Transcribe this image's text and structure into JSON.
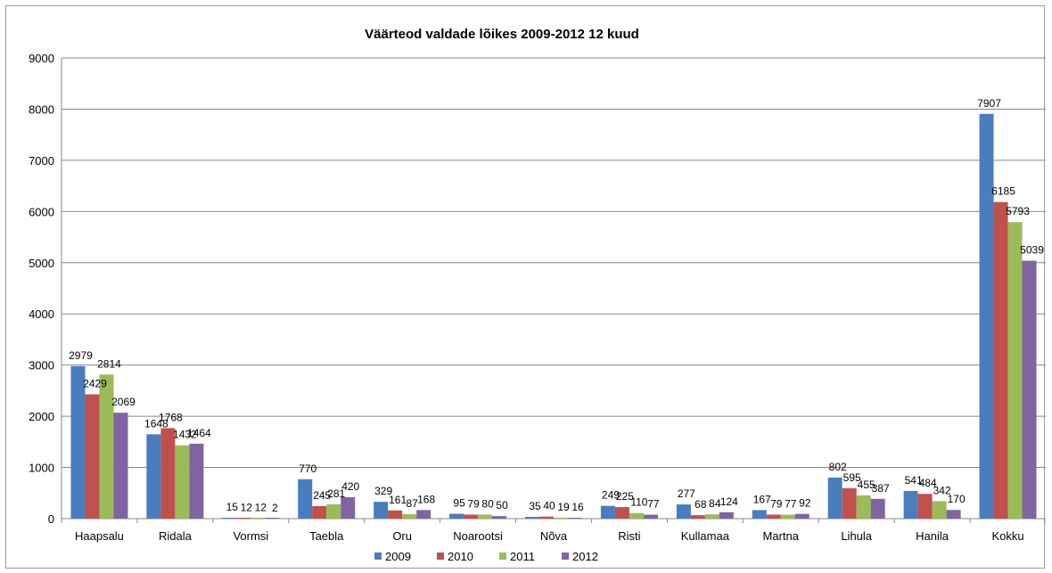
{
  "chart_data": {
    "type": "bar",
    "title": "Väärteod valdade lõikes 2009-2012 12 kuud",
    "xlabel": "",
    "ylabel": "",
    "ylim": [
      0,
      9000
    ],
    "yticks": [
      "0",
      "1000",
      "2000",
      "3000",
      "4000",
      "5000",
      "6000",
      "7000",
      "8000",
      "9000"
    ],
    "grid": true,
    "legend_position": "bottom",
    "categories": [
      "Haapsalu",
      "Ridala",
      "Vormsi",
      "Taebla",
      "Oru",
      "Noarootsi",
      "Nõva",
      "Risti",
      "Kullamaa",
      "Martna",
      "Lihula",
      "Hanila",
      "Kokku"
    ],
    "series": [
      {
        "name": "2009",
        "color": "#4a7dbd",
        "values": [
          2979,
          1648,
          15,
          770,
          329,
          95,
          35,
          249,
          277,
          167,
          802,
          541,
          7907
        ]
      },
      {
        "name": "2010",
        "color": "#c0504d",
        "values": [
          2429,
          1768,
          12,
          245,
          161,
          79,
          40,
          225,
          68,
          79,
          595,
          484,
          6185
        ]
      },
      {
        "name": "2011",
        "color": "#9bbb59",
        "values": [
          2814,
          1432,
          12,
          281,
          87,
          80,
          19,
          110,
          84,
          77,
          455,
          342,
          5793
        ]
      },
      {
        "name": "2012",
        "color": "#8064a2",
        "values": [
          2069,
          1464,
          2,
          420,
          168,
          50,
          16,
          77,
          124,
          92,
          387,
          170,
          5039
        ]
      }
    ]
  }
}
